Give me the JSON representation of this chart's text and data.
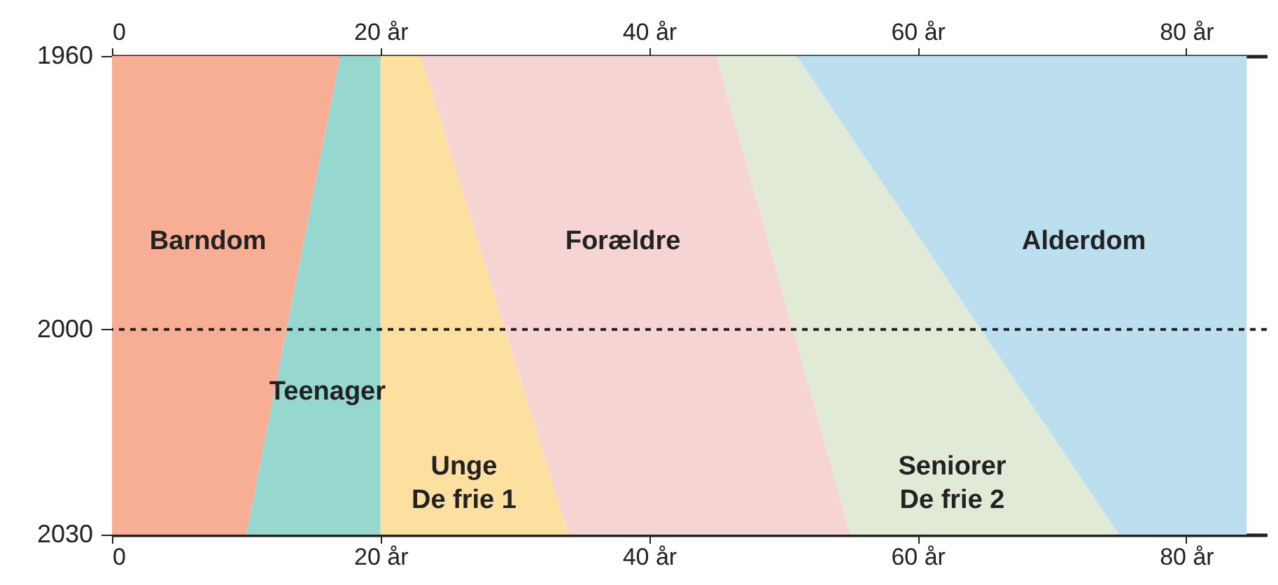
{
  "chart_data": {
    "type": "area",
    "stacked": true,
    "orientation": "horizontal",
    "x": [
      1960,
      2030
    ],
    "series": [
      {
        "name": "Barndom",
        "color": "#f7ae94",
        "values": [
          17,
          10
        ]
      },
      {
        "name": "Teenager",
        "color": "#96d8cf",
        "values": [
          3,
          10
        ]
      },
      {
        "name": "Unge\nDe frie 1",
        "color": "#fddfa0",
        "values": [
          3,
          14
        ]
      },
      {
        "name": "Forældre",
        "color": "#f7d4d4",
        "values": [
          22,
          21
        ]
      },
      {
        "name": "Seniorer\nDe frie 2",
        "color": "#e0ead7",
        "values": [
          6,
          20
        ]
      },
      {
        "name": "Alderdom",
        "color": "#bcdff0",
        "values": [
          33.5,
          9.5
        ]
      }
    ],
    "xlim": [
      0,
      86
    ],
    "xticks": [
      0,
      {
        "value": 20,
        "label": "20 år"
      },
      {
        "value": 40,
        "label": "40 år"
      },
      {
        "value": 60,
        "label": "60 år"
      },
      {
        "value": 80,
        "label": "80 år"
      }
    ],
    "x2lim": [
      0,
      86
    ],
    "x2ticks": [
      0,
      {
        "value": 20,
        "label": "20 år"
      },
      {
        "value": 40,
        "label": "40 år"
      },
      {
        "value": 60,
        "label": "60 år"
      },
      {
        "value": 80,
        "label": "80 år"
      }
    ],
    "ylim": [
      2030,
      1960
    ],
    "yticks": [
      1960,
      2000,
      2030
    ],
    "ref_lines": [
      {
        "axis": "y",
        "value": 2000,
        "line_style": "dashed"
      }
    ],
    "grid": false
  }
}
